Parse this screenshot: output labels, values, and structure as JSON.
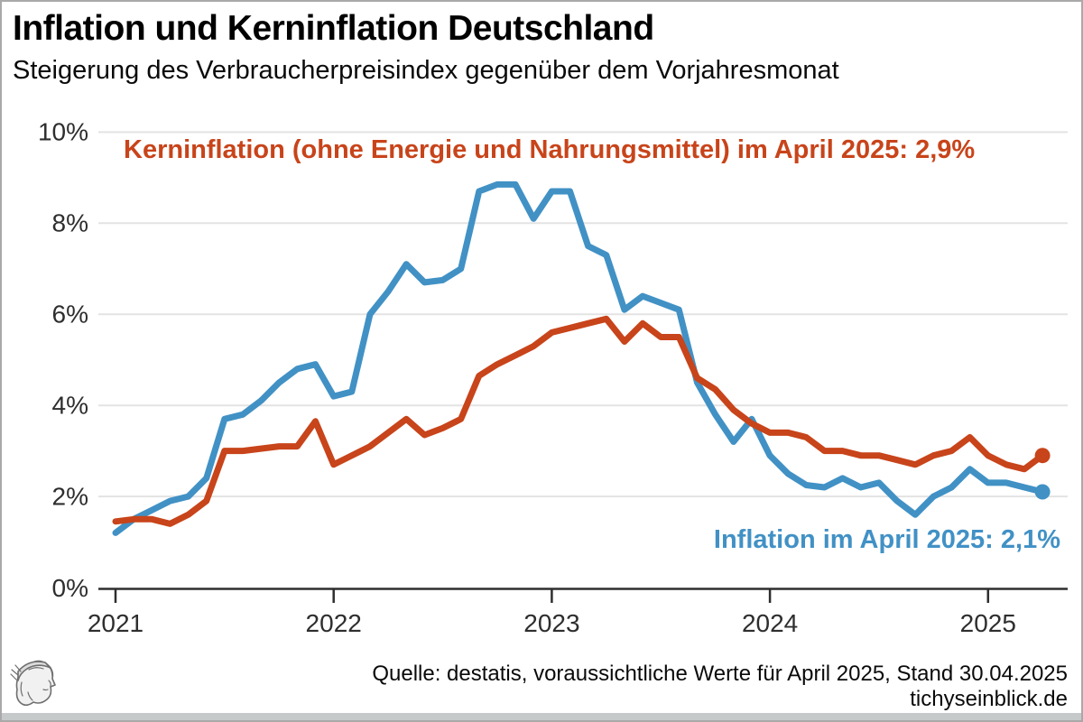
{
  "header": {
    "title": "Inflation und Kerninflation Deutschland",
    "subtitle": "Steigerung des Verbraucherpreisindex gegenüber dem Vorjahresmonat"
  },
  "annotations": {
    "core_label": "Kerninflation (ohne Energie und Nahrungsmittel) im April 2025: 2,9%",
    "headline_label": "Inflation im April 2025: 2,1%"
  },
  "footer": {
    "source_line": "Quelle: destatis, voraussichtliche Werte für April 2025, Stand 30.04.2025",
    "site": "tichyseinblick.de"
  },
  "logo": {
    "icon": "hermes-head-engraving"
  },
  "colors": {
    "inflation_blue": "#4191c5",
    "core_red": "#c8441a",
    "gridline": "#e3e3e3",
    "axis": "#2e2e2e",
    "bottom_strip": "#c6c9ca"
  },
  "chart_data": {
    "type": "line",
    "title": "Inflation und Kerninflation Deutschland",
    "subtitle": "Steigerung des Verbraucherpreisindex gegenüber dem Vorjahresmonat",
    "x_unit": "month",
    "x_start": "2021-01",
    "x_end": "2025-04",
    "x_tick_labels": [
      "2021",
      "2022",
      "2023",
      "2024",
      "2025"
    ],
    "y_tick_labels": [
      "0%",
      "2%",
      "4%",
      "6%",
      "8%",
      "10%"
    ],
    "ylim": [
      0,
      10
    ],
    "grid": "horizontal",
    "legend_position": "inline-annotations",
    "end_markers": "dot",
    "series": [
      {
        "name": "Inflation",
        "color": "#4191c5",
        "final_value_label": "2,1%",
        "values": [
          1.2,
          1.5,
          1.7,
          1.9,
          2.0,
          2.4,
          3.7,
          3.8,
          4.1,
          4.5,
          4.8,
          4.9,
          4.2,
          4.3,
          6.0,
          6.5,
          7.1,
          6.7,
          6.75,
          7.0,
          8.7,
          8.85,
          8.85,
          8.1,
          8.7,
          8.7,
          7.5,
          7.3,
          6.1,
          6.4,
          6.25,
          6.1,
          4.5,
          3.8,
          3.2,
          3.7,
          2.9,
          2.5,
          2.25,
          2.2,
          2.4,
          2.2,
          2.3,
          1.9,
          1.6,
          2.0,
          2.2,
          2.6,
          2.3,
          2.3,
          2.2,
          2.1
        ]
      },
      {
        "name": "Kerninflation (ohne Energie und Nahrungsmittel)",
        "color": "#c8441a",
        "final_value_label": "2,9%",
        "values": [
          1.45,
          1.5,
          1.5,
          1.4,
          1.6,
          1.9,
          3.0,
          3.0,
          3.05,
          3.1,
          3.1,
          3.65,
          2.7,
          2.9,
          3.1,
          3.4,
          3.7,
          3.35,
          3.5,
          3.7,
          4.65,
          4.9,
          5.1,
          5.3,
          5.6,
          5.7,
          5.8,
          5.9,
          5.4,
          5.8,
          5.5,
          5.5,
          4.6,
          4.35,
          3.9,
          3.6,
          3.4,
          3.4,
          3.3,
          3.0,
          3.0,
          2.9,
          2.9,
          2.8,
          2.7,
          2.9,
          3.0,
          3.3,
          2.9,
          2.7,
          2.6,
          2.9
        ]
      }
    ]
  }
}
